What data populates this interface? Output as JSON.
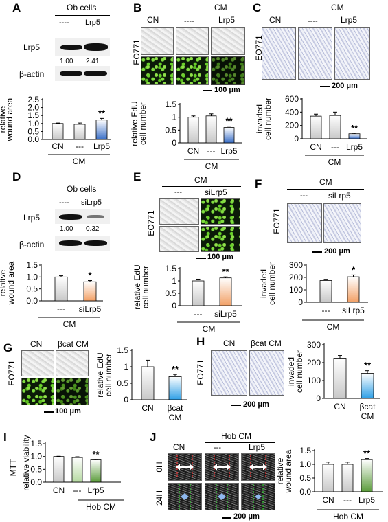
{
  "panels": {
    "A": {
      "label": "A",
      "header": "Ob cells",
      "lanes": [
        "----",
        "Lrp5"
      ],
      "protein1": "Lrp5",
      "protein2": "β-actin",
      "quant": [
        "1.00",
        "2.41"
      ],
      "ylabel": "relative\nwound area",
      "yticks": [
        "0.0",
        "0.5",
        "1.0",
        "1.5",
        "2.0",
        "2.5"
      ],
      "xticks": [
        "CN",
        "---",
        "Lrp5"
      ],
      "group": "CM",
      "sig": "**"
    },
    "B": {
      "label": "B",
      "header": "CM",
      "cols": [
        "CN",
        "----",
        "Lrp5"
      ],
      "cell_line": "EO771",
      "scale": "100 μm",
      "ylabel": "relative EdU\ncell number",
      "yticks": [
        "0",
        "0.5",
        "1",
        "1.5"
      ],
      "xticks": [
        "CN",
        "---",
        "Lrp5"
      ],
      "group": "CM",
      "sig": "**"
    },
    "C": {
      "label": "C",
      "header": "CM",
      "cols": [
        "CN",
        "----",
        "Lrp5"
      ],
      "cell_line": "EO771",
      "scale": "200 μm",
      "ylabel": "invaded\ncell number",
      "yticks": [
        "0",
        "200",
        "400",
        "600"
      ],
      "xticks": [
        "CN",
        "---",
        "Lrp5"
      ],
      "group": "CM",
      "sig": "**"
    },
    "D": {
      "label": "D",
      "header": "Ob cells",
      "lanes": [
        "----",
        "siLrp5"
      ],
      "protein1": "Lrp5",
      "protein2": "β-actin",
      "quant": [
        "1.00",
        "0.32"
      ],
      "ylabel": "relative\nwound area",
      "yticks": [
        "0.0",
        "0.5",
        "1.0",
        "1.5"
      ],
      "xticks": [
        "---",
        "siLrp5"
      ],
      "group": "CM",
      "sig": "*"
    },
    "E": {
      "label": "E",
      "header": "CM",
      "cols": [
        "---",
        "siLrp5"
      ],
      "cell_line": "EO771",
      "scale": "100 μm",
      "ylabel": "relative EdU\ncell number",
      "yticks": [
        "0",
        "0.5",
        "1",
        "1.5"
      ],
      "xticks": [
        "---",
        "siLrp5"
      ],
      "group": "CM",
      "sig": "**"
    },
    "F": {
      "label": "F",
      "header": "CM",
      "cols": [
        "---",
        "siLrp5"
      ],
      "cell_line": "EO771",
      "scale": "200 μm",
      "ylabel": "invaded\ncell number",
      "yticks": [
        "0",
        "100",
        "200",
        "300"
      ],
      "xticks": [
        "---",
        "siLrp5"
      ],
      "group": "CM",
      "sig": "*"
    },
    "G": {
      "label": "G",
      "cols": [
        "CN",
        "βcat CM"
      ],
      "cell_line": "EO771",
      "scale": "100 μm",
      "ylabel": "relative EdU\ncell number",
      "yticks": [
        "0",
        "0.5",
        "1",
        "1.5"
      ],
      "xticks": [
        "CN",
        "βcat\nCM"
      ],
      "sig": "**"
    },
    "H": {
      "label": "H",
      "cols": [
        "CN",
        "βcat CM"
      ],
      "cell_line": "EO771",
      "scale": "200 μm",
      "ylabel": "invaded\ncell number",
      "yticks": [
        "0",
        "100",
        "200",
        "300"
      ],
      "xticks": [
        "CN",
        "βcat\nCM"
      ],
      "sig": "**"
    },
    "I": {
      "label": "I",
      "ylabel_outer": "MTT",
      "ylabel": "relative viability",
      "yticks": [
        "0.0",
        "0.5",
        "1.0",
        "1.5"
      ],
      "xticks": [
        "CN",
        "---",
        "Lrp5"
      ],
      "group": "Hob CM",
      "sig": "**"
    },
    "J": {
      "label": "J",
      "header": "Hob CM",
      "cols": [
        "CN",
        "---",
        "Lrp5"
      ],
      "rows": [
        "0H",
        "24H"
      ],
      "scale": "200 μm",
      "ylabel": "relative\nwound area",
      "yticks": [
        "0.0",
        "0.5",
        "1.0",
        "1.5"
      ],
      "xticks": [
        "CN",
        "---",
        "Lrp5"
      ],
      "group": "Hob CM",
      "sig": "**"
    }
  },
  "chart_data": [
    {
      "panel": "A",
      "type": "bar",
      "categories": [
        "CN",
        "---",
        "Lrp5"
      ],
      "values": [
        1.0,
        0.95,
        1.22
      ],
      "errors": [
        0.03,
        0.08,
        0.1
      ],
      "ylim": [
        0,
        2.5
      ],
      "ylabel": "relative wound area"
    },
    {
      "panel": "B",
      "type": "bar",
      "categories": [
        "CN",
        "---",
        "Lrp5"
      ],
      "values": [
        1.0,
        1.05,
        0.6
      ],
      "errors": [
        0.05,
        0.08,
        0.05
      ],
      "ylim": [
        0,
        1.5
      ],
      "ylabel": "relative EdU cell number"
    },
    {
      "panel": "C",
      "type": "bar",
      "categories": [
        "CN",
        "---",
        "Lrp5"
      ],
      "values": [
        340,
        350,
        75
      ],
      "errors": [
        30,
        50,
        10
      ],
      "ylim": [
        0,
        600
      ],
      "ylabel": "invaded cell number"
    },
    {
      "panel": "D",
      "type": "bar",
      "categories": [
        "---",
        "siLrp5"
      ],
      "values": [
        1.0,
        0.8
      ],
      "errors": [
        0.05,
        0.05
      ],
      "ylim": [
        0,
        1.5
      ],
      "ylabel": "relative wound area"
    },
    {
      "panel": "E",
      "type": "bar",
      "categories": [
        "---",
        "siLrp5"
      ],
      "values": [
        1.0,
        1.12
      ],
      "errors": [
        0.07,
        0.04
      ],
      "ylim": [
        0,
        1.5
      ],
      "ylabel": "relative EdU cell number"
    },
    {
      "panel": "F",
      "type": "bar",
      "categories": [
        "---",
        "siLrp5"
      ],
      "values": [
        175,
        205
      ],
      "errors": [
        10,
        15
      ],
      "ylim": [
        0,
        300
      ],
      "ylabel": "invaded cell number"
    },
    {
      "panel": "G",
      "type": "bar",
      "categories": [
        "CN",
        "βcat CM"
      ],
      "values": [
        1.0,
        0.7
      ],
      "errors": [
        0.2,
        0.07
      ],
      "ylim": [
        0,
        1.5
      ],
      "ylabel": "relative EdU cell number"
    },
    {
      "panel": "H",
      "type": "bar",
      "categories": [
        "CN",
        "βcat CM"
      ],
      "values": [
        225,
        140
      ],
      "errors": [
        15,
        15
      ],
      "ylim": [
        0,
        300
      ],
      "ylabel": "invaded cell number"
    },
    {
      "panel": "I",
      "type": "bar",
      "categories": [
        "CN",
        "---",
        "Lrp5"
      ],
      "values": [
        1.0,
        0.96,
        0.87
      ],
      "errors": [
        0.01,
        0.03,
        0.02
      ],
      "ylim": [
        0,
        1.5
      ],
      "ylabel": "relative viability"
    },
    {
      "panel": "J",
      "type": "bar",
      "categories": [
        "CN",
        "---",
        "Lrp5"
      ],
      "values": [
        1.0,
        1.0,
        1.17
      ],
      "errors": [
        0.08,
        0.08,
        0.04
      ],
      "ylim": [
        0,
        1.5
      ],
      "ylabel": "relative wound area"
    }
  ]
}
